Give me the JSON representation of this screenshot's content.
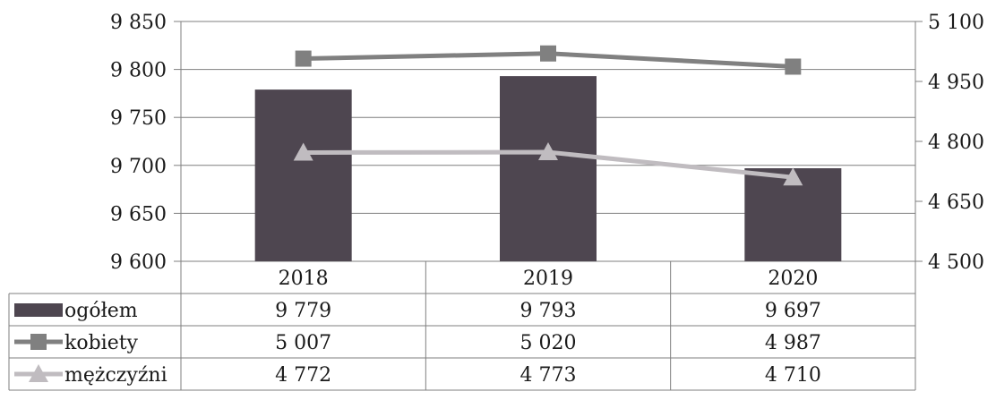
{
  "chart_data": {
    "type": "bar",
    "categories": [
      "2018",
      "2019",
      "2020"
    ],
    "series": [
      {
        "name": "ogółem",
        "kind": "bar",
        "axis": "left",
        "values": [
          9779,
          9793,
          9697
        ],
        "labels": [
          "9 779",
          "9 793",
          "9 697"
        ],
        "color": "#4e4650"
      },
      {
        "name": "kobiety",
        "kind": "line",
        "marker": "square",
        "axis": "right",
        "values": [
          5007,
          5020,
          4987
        ],
        "labels": [
          "5 007",
          "5 020",
          "4 987"
        ],
        "color": "#808080"
      },
      {
        "name": "mężczyźni",
        "kind": "line",
        "marker": "triangle",
        "axis": "right",
        "values": [
          4772,
          4773,
          4710
        ],
        "labels": [
          "4 772",
          "4 773",
          "4 710"
        ],
        "color": "#c0bcc0"
      }
    ],
    "y_left": {
      "ylim": [
        9600,
        9850
      ],
      "ticks": [
        9600,
        9650,
        9700,
        9750,
        9800,
        9850
      ],
      "tick_labels": [
        "9 600",
        "9 650",
        "9 700",
        "9 750",
        "9 800",
        "9 850"
      ]
    },
    "y_right": {
      "ylim": [
        4500,
        5100
      ],
      "ticks": [
        4500,
        4650,
        4800,
        4950,
        5100
      ],
      "tick_labels": [
        "4 500",
        "4 650",
        "4 800",
        "4 950",
        "5 100"
      ]
    },
    "grid": true,
    "legend": "data-table"
  }
}
